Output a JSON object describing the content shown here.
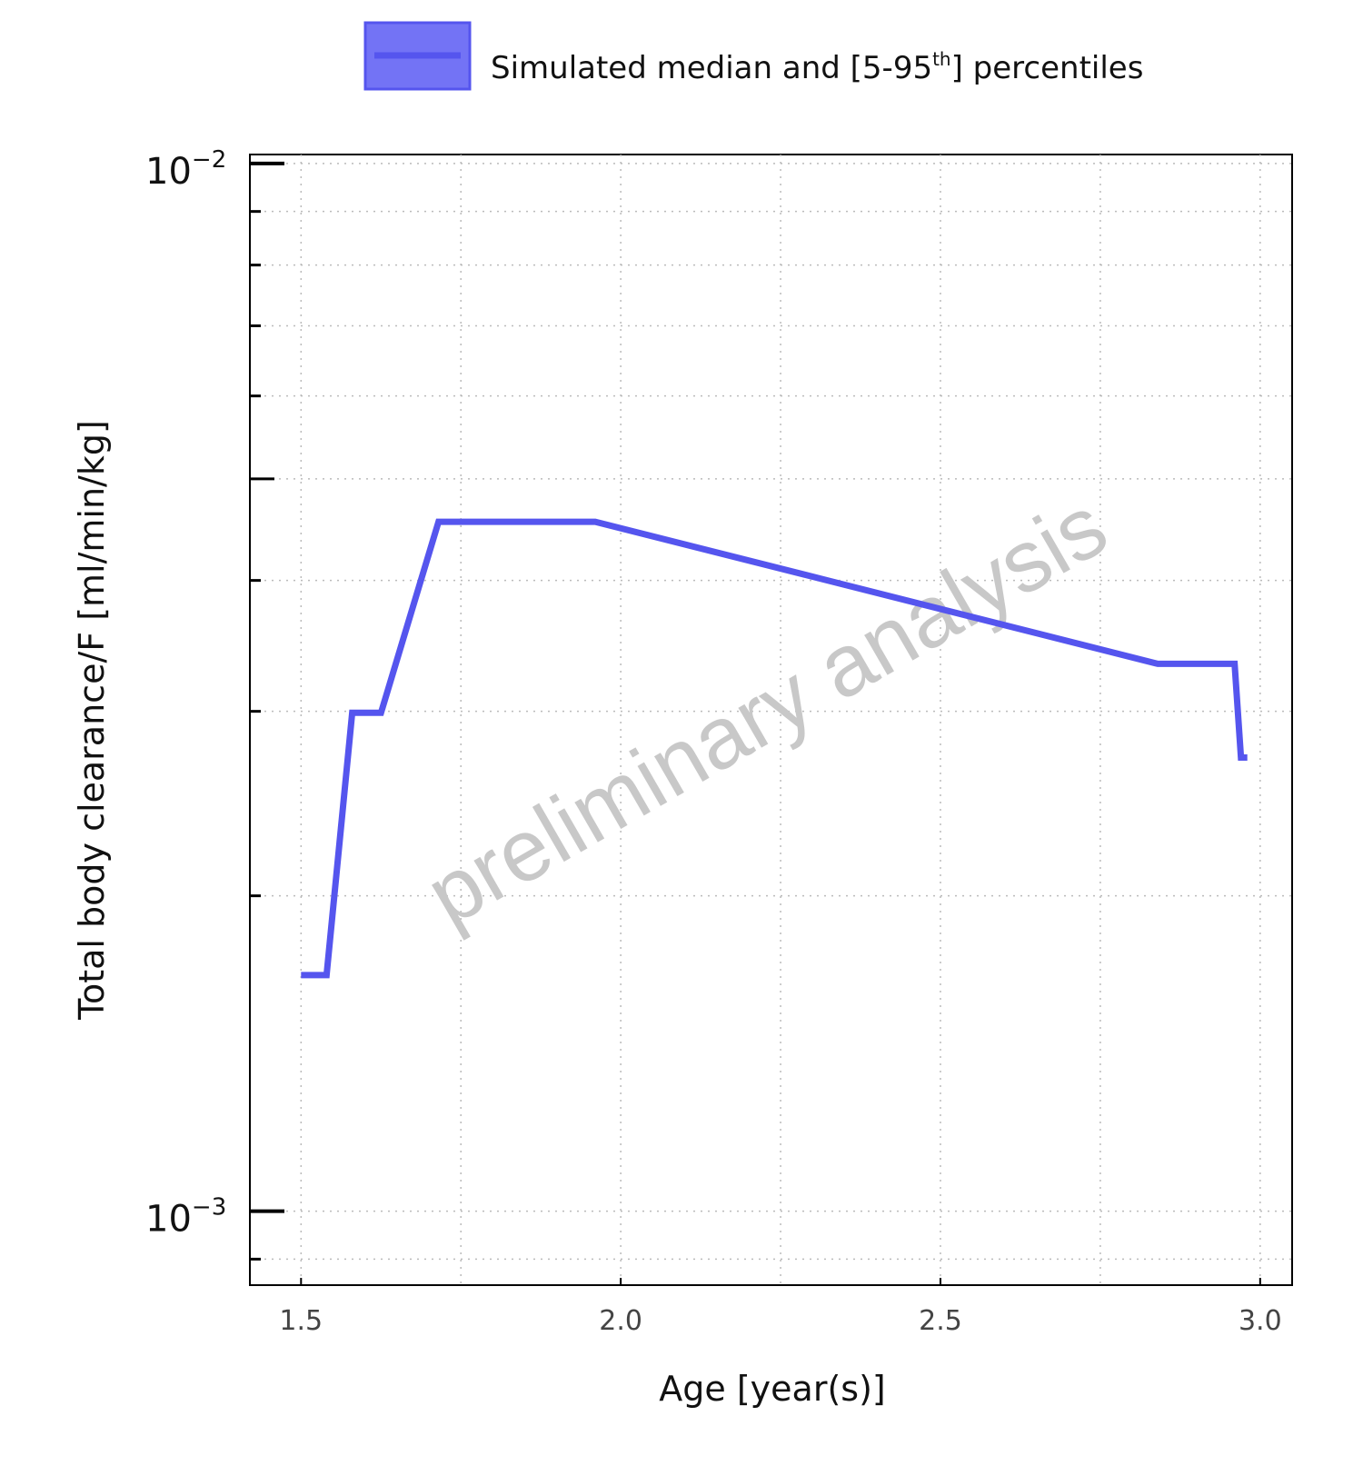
{
  "chart_data": {
    "type": "line",
    "title": "",
    "xlabel": "Age [year(s)]",
    "ylabel": "Total body clearance/F [ml/min/kg]",
    "xlim": [
      1.42,
      3.05
    ],
    "ylim": [
      0.00085,
      0.0102
    ],
    "yscale": "log",
    "grid": true,
    "legend_position": "top",
    "x_ticks": [
      {
        "value": 1.5,
        "label": "1.5"
      },
      {
        "value": 2.0,
        "label": "2.0"
      },
      {
        "value": 2.5,
        "label": "2.5"
      },
      {
        "value": 3.0,
        "label": "3.0"
      }
    ],
    "y_ticks_major": [
      {
        "value": 0.01,
        "base": "10",
        "exponent": "−2"
      },
      {
        "value": 0.001,
        "base": "10",
        "exponent": "−3"
      }
    ],
    "series": [
      {
        "name": "Simulated median and [5-95th] percentiles",
        "legend_label": {
          "pre": "Simulated median and [5-95",
          "sup": "th",
          "post": "] percentiles"
        },
        "color": "#5555ee",
        "band_fill": "#7373f5",
        "x": [
          1.5,
          1.54,
          1.58,
          1.625,
          1.715,
          1.96,
          2.84,
          2.96,
          2.97,
          2.98
        ],
        "y": [
          0.00168,
          0.00168,
          0.00299,
          0.00299,
          0.00455,
          0.00455,
          0.00333,
          0.00333,
          0.00271,
          0.00271
        ]
      }
    ],
    "watermark": "preliminary analysis"
  }
}
